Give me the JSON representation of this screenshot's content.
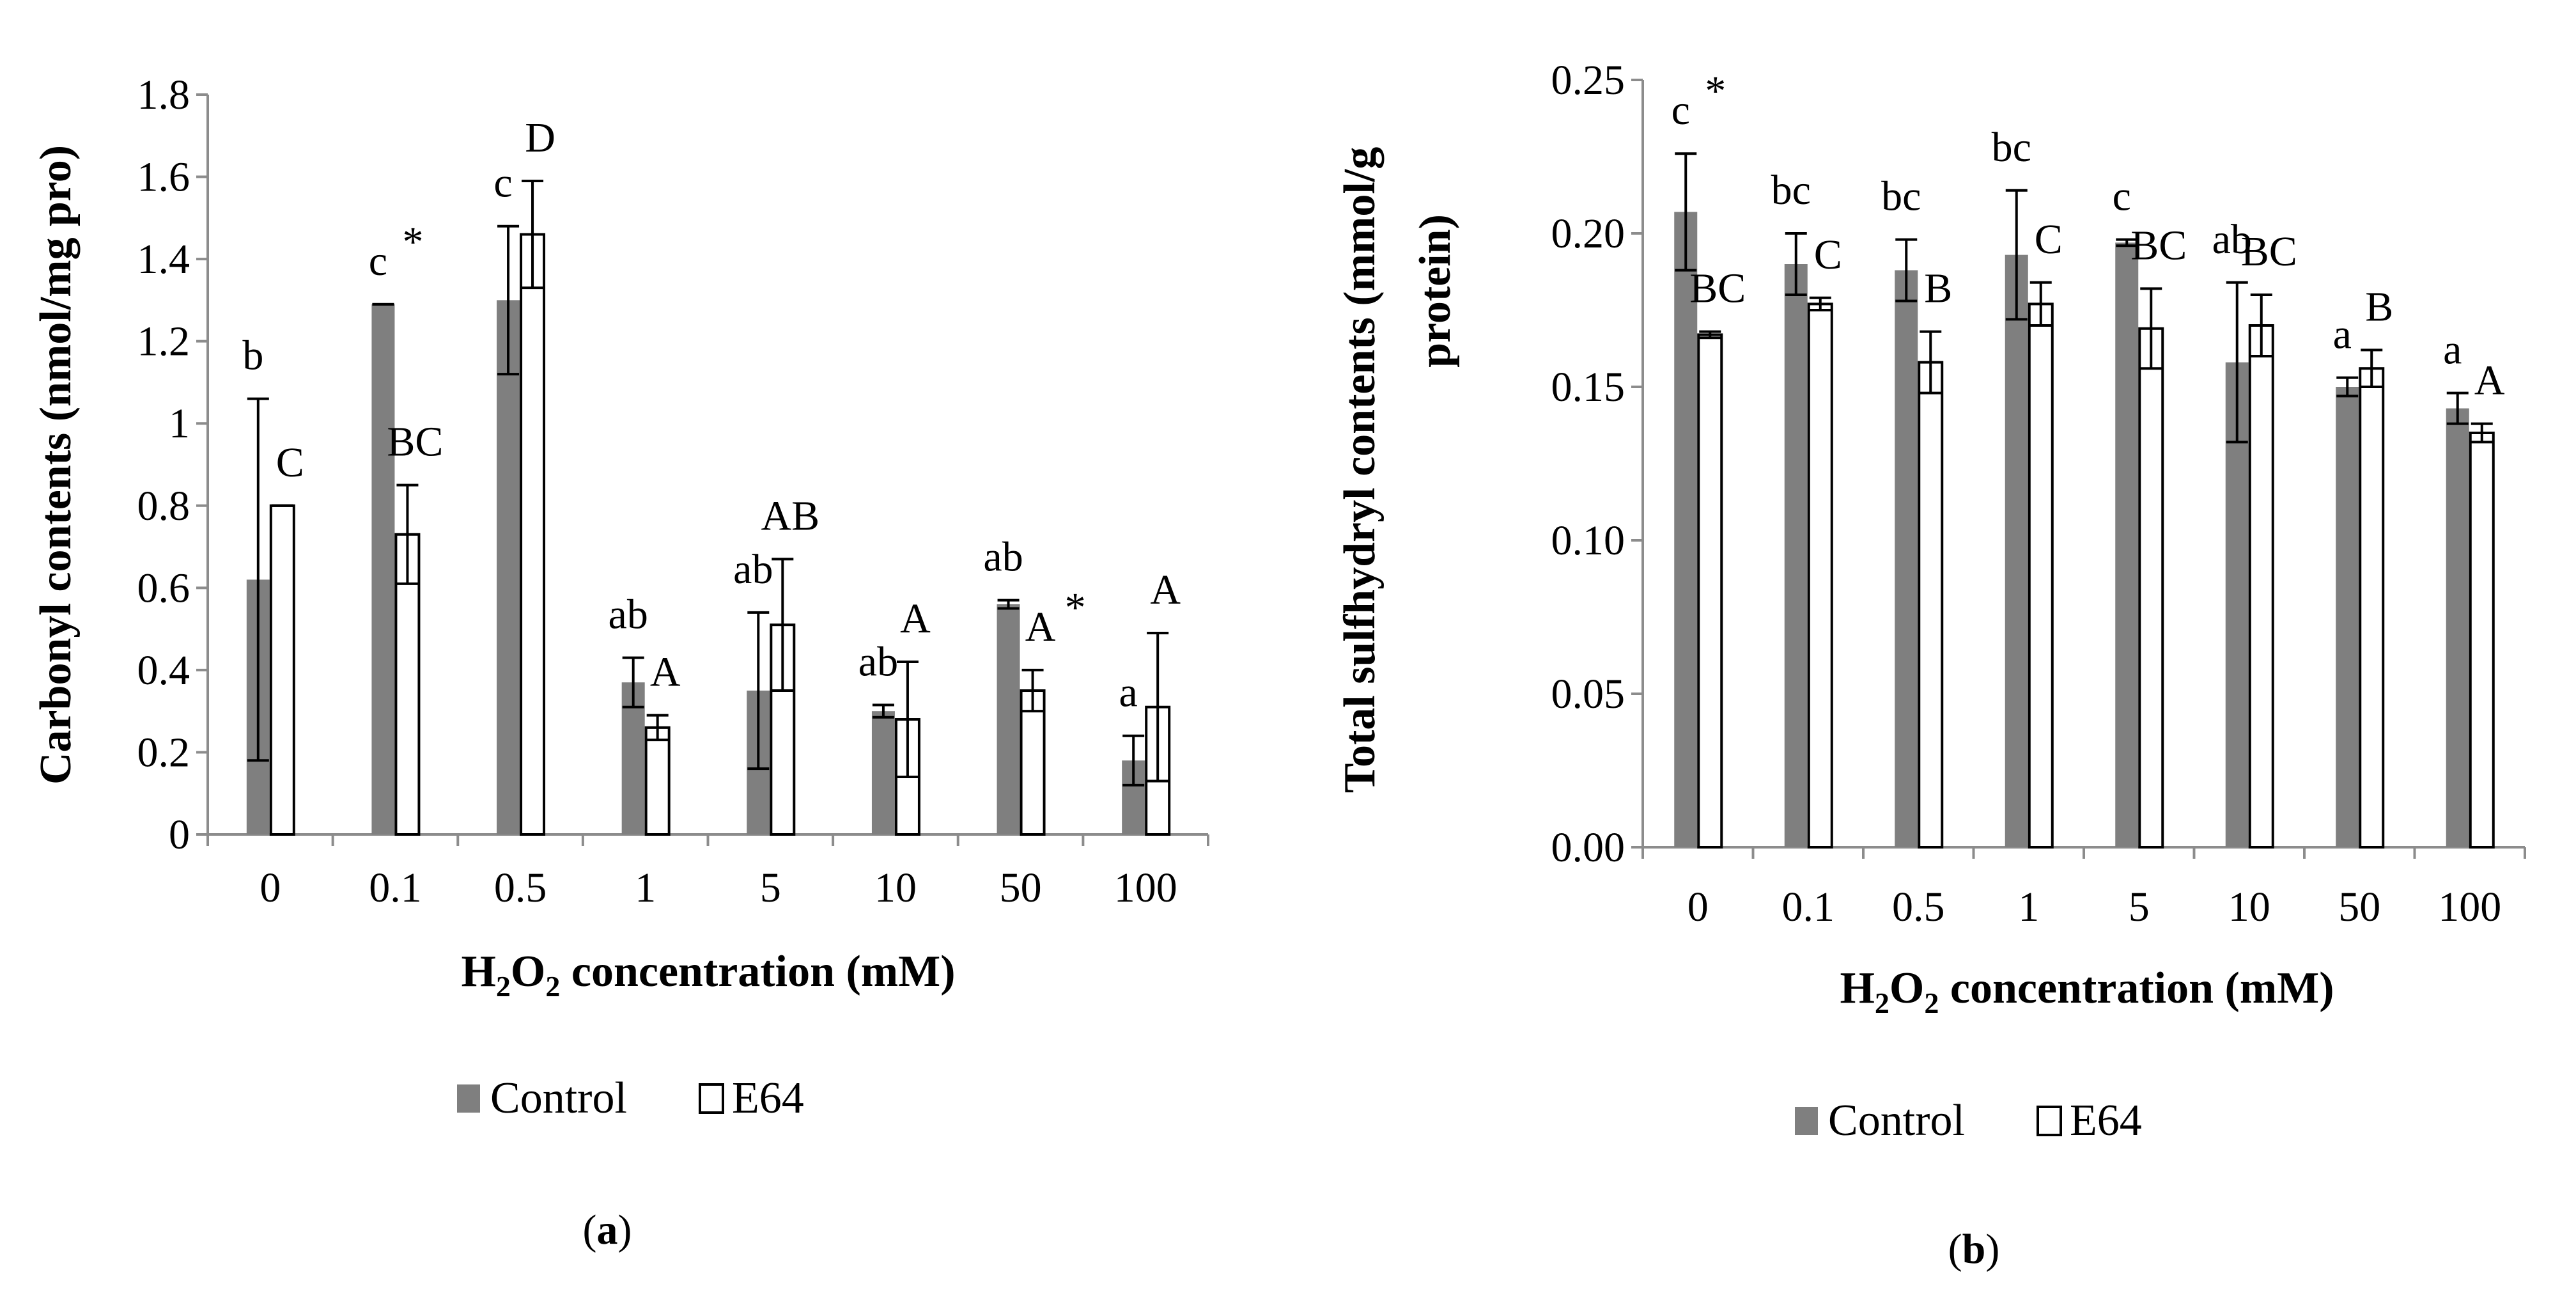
{
  "chart_data": [
    {
      "type": "bar",
      "panel_label_open": "(",
      "panel_label_letter": "a",
      "panel_label_close": ")",
      "ylabel": "Carbonyl contents (nmol/mg pro)",
      "xlabel_parts": [
        "H",
        "2",
        "O",
        "2",
        " concentration (mM)"
      ],
      "categories": [
        "0",
        "0.1",
        "0.5",
        "1",
        "5",
        "10",
        "50",
        "100"
      ],
      "ylim": [
        0,
        1.8
      ],
      "yticks": [
        "0",
        "0.2",
        "0.4",
        "0.6",
        "0.8",
        "1",
        "1.2",
        "1.4",
        "1.6",
        "1.8"
      ],
      "ytick_values": [
        0,
        0.2,
        0.4,
        0.6,
        0.8,
        1,
        1.2,
        1.4,
        1.6,
        1.8
      ],
      "series": [
        {
          "name": "Control",
          "color": "#7f7f7f",
          "values": [
            0.62,
            1.29,
            1.3,
            0.37,
            0.35,
            0.3,
            0.56,
            0.18
          ],
          "errors": [
            0.44,
            0.0,
            0.18,
            0.06,
            0.19,
            0.015,
            0.01,
            0.06
          ],
          "letters": [
            "b",
            "c",
            "c",
            "ab",
            "ab",
            "ab",
            "ab",
            "a"
          ],
          "stars": [
            "",
            "*",
            "",
            "",
            "",
            "",
            "",
            ""
          ]
        },
        {
          "name": "E64",
          "color": "#ffffff",
          "values": [
            0.8,
            0.73,
            1.46,
            0.26,
            0.51,
            0.28,
            0.35,
            0.31
          ],
          "errors": [
            0.0,
            0.12,
            0.13,
            0.03,
            0.16,
            0.14,
            0.05,
            0.18
          ],
          "letters": [
            "C",
            "BC",
            "D",
            "A",
            "AB",
            "A",
            "A",
            "A"
          ],
          "stars": [
            "",
            "",
            "",
            "",
            "",
            "",
            "*",
            ""
          ]
        }
      ]
    },
    {
      "type": "bar",
      "panel_label_open": "(",
      "panel_label_letter": "b",
      "panel_label_close": ")",
      "ylabel_lines": [
        "Total sulfhydryl contents (mmol/g",
        "protein)"
      ],
      "xlabel_parts": [
        "H",
        "2",
        "O",
        "2",
        " concentration (mM)"
      ],
      "categories": [
        "0",
        "0.1",
        "0.5",
        "1",
        "5",
        "10",
        "50",
        "100"
      ],
      "ylim": [
        0,
        0.25
      ],
      "yticks": [
        "0.00",
        "0.05",
        "0.10",
        "0.15",
        "0.20",
        "0.25"
      ],
      "ytick_values": [
        0,
        0.05,
        0.1,
        0.15,
        0.2,
        0.25
      ],
      "series": [
        {
          "name": "Control",
          "color": "#7f7f7f",
          "values": [
            0.207,
            0.19,
            0.188,
            0.193,
            0.197,
            0.158,
            0.15,
            0.143
          ],
          "errors": [
            0.019,
            0.01,
            0.01,
            0.021,
            0.001,
            0.026,
            0.003,
            0.005
          ],
          "letters": [
            "c",
            "bc",
            "bc",
            "bc",
            "c",
            "ab",
            "a",
            "a"
          ],
          "stars": [
            "*",
            "",
            "",
            "",
            "",
            "",
            "",
            ""
          ]
        },
        {
          "name": "E64",
          "color": "#ffffff",
          "values": [
            0.167,
            0.177,
            0.158,
            0.177,
            0.169,
            0.17,
            0.156,
            0.135
          ],
          "errors": [
            0.001,
            0.002,
            0.01,
            0.007,
            0.013,
            0.01,
            0.006,
            0.003
          ],
          "letters": [
            "BC",
            "C",
            "B",
            "C",
            "BC",
            "BC",
            "B",
            "A"
          ],
          "stars": [
            "",
            "",
            "",
            "",
            "",
            "",
            "",
            ""
          ]
        }
      ]
    }
  ]
}
